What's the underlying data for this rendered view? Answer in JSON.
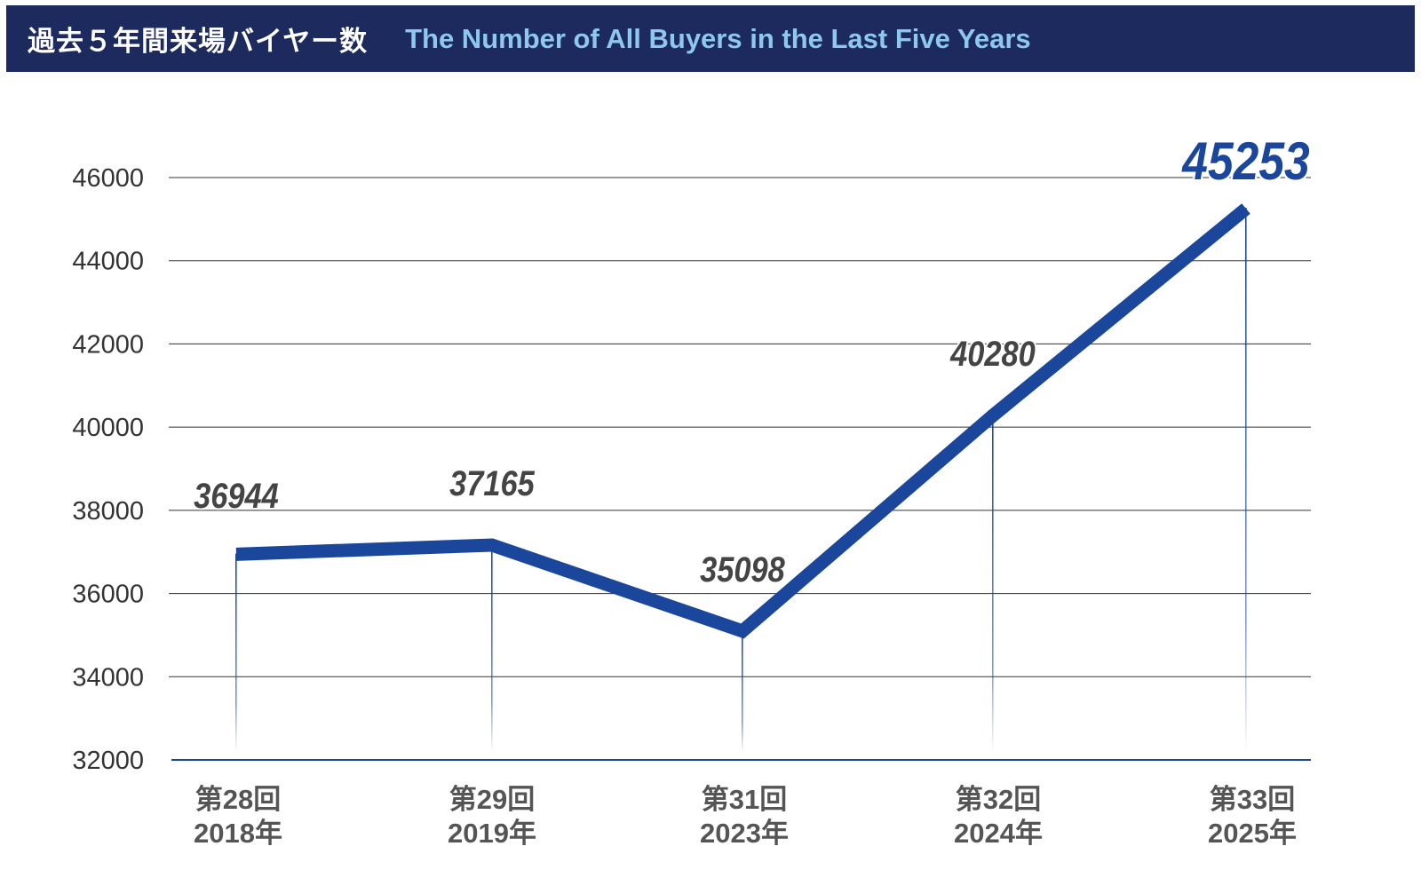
{
  "header": {
    "title_ja": "過去５年間来場バイヤー数",
    "title_en": "The Number of All Buyers in the Last Five Years"
  },
  "colors": {
    "header_bg": "#1c2a5d",
    "title_en": "#8ec8ef",
    "series": "#1a479b",
    "value_label": "#444444",
    "highlight_label": "#1a479b"
  },
  "chart_data": {
    "type": "line",
    "title": "The Number of All Buyers in the Last Five Years",
    "categories": [
      {
        "session": "第28回",
        "year": "2018年"
      },
      {
        "session": "第29回",
        "year": "2019年"
      },
      {
        "session": "第31回",
        "year": "2023年"
      },
      {
        "session": "第32回",
        "year": "2024年"
      },
      {
        "session": "第33回",
        "year": "2025年"
      }
    ],
    "values": [
      36944,
      37165,
      35098,
      40280,
      45253
    ],
    "ylim": [
      32000,
      46000
    ],
    "yticks": [
      "32000",
      "34000",
      "36000",
      "38000",
      "40000",
      "42000",
      "44000",
      "46000"
    ],
    "grid": true,
    "legend": "none"
  }
}
